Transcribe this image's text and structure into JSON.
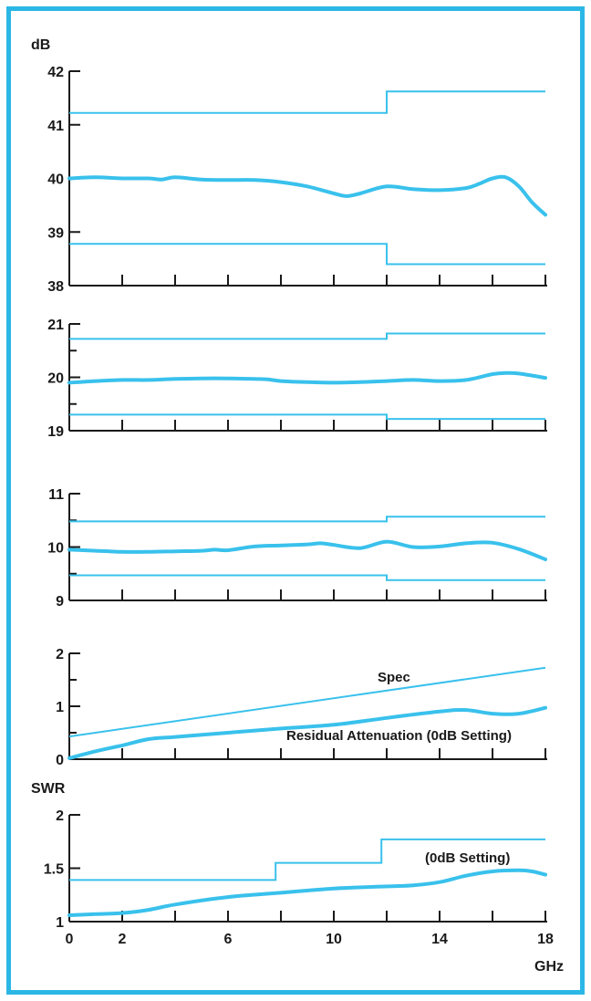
{
  "colors": {
    "border": "#2bb7e6",
    "curve": "#39c1ec",
    "spec": "#39c1ec",
    "axis": "#1a1a1a",
    "background": "#ffffff"
  },
  "x_axis": {
    "ticks": [
      "0",
      "2",
      "6",
      "10",
      "14",
      "18"
    ],
    "unit": "GHz"
  },
  "chart_data": [
    {
      "type": "line",
      "ylabel": "dB",
      "ylim": [
        38,
        42
      ],
      "yticks": [
        "38",
        "39",
        "40",
        "41",
        "42"
      ],
      "xlim": [
        0,
        18
      ],
      "series": [
        {
          "role": "upper-spec",
          "x": [
            0,
            12,
            12,
            18
          ],
          "y": [
            41.22,
            41.22,
            41.62,
            41.62
          ]
        },
        {
          "role": "measured",
          "x": [
            0,
            1,
            2,
            3,
            3.5,
            4,
            5,
            6,
            7,
            8,
            9,
            10,
            10.5,
            11,
            12,
            13,
            14,
            15,
            15.5,
            16,
            16.5,
            17,
            17.5,
            18
          ],
          "y": [
            40.0,
            40.02,
            40.0,
            40.0,
            39.98,
            40.02,
            39.98,
            39.97,
            39.97,
            39.93,
            39.85,
            39.72,
            39.67,
            39.72,
            39.85,
            39.8,
            39.78,
            39.82,
            39.9,
            40.0,
            40.02,
            39.85,
            39.55,
            39.32
          ]
        },
        {
          "role": "lower-spec",
          "x": [
            0,
            12,
            12,
            18
          ],
          "y": [
            38.78,
            38.78,
            38.4,
            38.4
          ]
        }
      ]
    },
    {
      "type": "line",
      "ylim": [
        19,
        21
      ],
      "yticks": [
        "19",
        "20",
        "21"
      ],
      "xlim": [
        0,
        18
      ],
      "series": [
        {
          "role": "upper-spec",
          "x": [
            0,
            12,
            12,
            18
          ],
          "y": [
            20.72,
            20.72,
            20.82,
            20.82
          ]
        },
        {
          "role": "measured",
          "x": [
            0,
            1,
            2,
            3,
            4,
            5,
            6,
            7,
            7.5,
            8,
            9,
            10,
            11,
            12,
            13,
            14,
            15,
            16,
            16.5,
            17,
            18
          ],
          "y": [
            19.9,
            19.93,
            19.95,
            19.95,
            19.97,
            19.98,
            19.98,
            19.97,
            19.96,
            19.93,
            19.91,
            19.9,
            19.91,
            19.93,
            19.95,
            19.93,
            19.95,
            20.06,
            20.08,
            20.07,
            19.99
          ]
        },
        {
          "role": "lower-spec",
          "x": [
            0,
            12,
            12,
            18
          ],
          "y": [
            19.3,
            19.3,
            19.22,
            19.22
          ]
        }
      ]
    },
    {
      "type": "line",
      "ylim": [
        9,
        11
      ],
      "yticks": [
        "9",
        "10",
        "11"
      ],
      "xlim": [
        0,
        18
      ],
      "series": [
        {
          "role": "upper-spec",
          "x": [
            0,
            12,
            12,
            18
          ],
          "y": [
            10.48,
            10.48,
            10.57,
            10.57
          ]
        },
        {
          "role": "measured",
          "x": [
            0,
            1,
            2,
            3,
            4,
            5,
            5.5,
            6,
            7,
            8,
            9,
            9.5,
            10,
            11,
            12,
            13,
            14,
            15,
            16,
            17,
            18
          ],
          "y": [
            9.95,
            9.93,
            9.91,
            9.91,
            9.92,
            9.93,
            9.95,
            9.94,
            10.01,
            10.03,
            10.05,
            10.07,
            10.04,
            9.98,
            10.1,
            10.0,
            10.01,
            10.07,
            10.08,
            9.96,
            9.77
          ]
        },
        {
          "role": "lower-spec",
          "x": [
            0,
            12,
            12,
            18
          ],
          "y": [
            9.47,
            9.47,
            9.38,
            9.38
          ]
        }
      ]
    },
    {
      "type": "line",
      "ylim": [
        0,
        2
      ],
      "yticks": [
        "0",
        "1",
        "2"
      ],
      "xlim": [
        0,
        18
      ],
      "annotations": [
        "Spec",
        "Residual Attenuation (0dB Setting)"
      ],
      "series": [
        {
          "name": "Spec",
          "role": "upper-spec",
          "x": [
            0,
            18
          ],
          "y": [
            0.43,
            1.73
          ]
        },
        {
          "name": "Residual Attenuation (0dB Setting)",
          "role": "measured",
          "x": [
            0,
            1,
            2,
            3,
            4,
            6,
            8,
            10,
            12,
            14,
            15,
            16,
            17,
            18
          ],
          "y": [
            0.02,
            0.15,
            0.26,
            0.38,
            0.42,
            0.5,
            0.58,
            0.65,
            0.78,
            0.9,
            0.93,
            0.86,
            0.86,
            0.97
          ]
        }
      ]
    },
    {
      "type": "line",
      "ylabel": "SWR",
      "xlabel": "GHz",
      "ylim": [
        1,
        2
      ],
      "yticks": [
        "1",
        "1.5",
        "2"
      ],
      "xlim": [
        0,
        18
      ],
      "annotations": [
        "(0dB Setting)"
      ],
      "series": [
        {
          "role": "upper-spec",
          "x": [
            0,
            7.8,
            7.8,
            11.8,
            11.8,
            18
          ],
          "y": [
            1.39,
            1.39,
            1.55,
            1.55,
            1.77,
            1.77
          ]
        },
        {
          "name": "(0dB Setting)",
          "role": "measured",
          "x": [
            0,
            1,
            2,
            3,
            4,
            6,
            8,
            10,
            12,
            13,
            14,
            15,
            16,
            17,
            17.5,
            18
          ],
          "y": [
            1.06,
            1.07,
            1.08,
            1.11,
            1.16,
            1.23,
            1.27,
            1.31,
            1.33,
            1.34,
            1.37,
            1.43,
            1.47,
            1.48,
            1.47,
            1.44
          ]
        }
      ]
    }
  ]
}
